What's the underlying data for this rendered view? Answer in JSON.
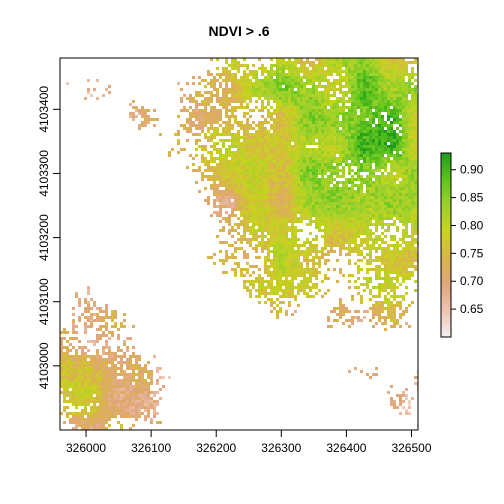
{
  "title": "NDVI > .6",
  "chart_data": {
    "type": "heatmap",
    "title": "NDVI > .6",
    "xlabel": "",
    "ylabel": "",
    "x_ticks": [
      326000,
      326100,
      326200,
      326300,
      326400,
      326500
    ],
    "x_tick_labels": [
      "326000",
      "326100",
      "326200",
      "326300",
      "326400",
      "326500"
    ],
    "y_ticks": [
      4103000,
      4103100,
      4103200,
      4103300,
      4103400
    ],
    "y_tick_labels": [
      "4103000",
      "4103100",
      "4103200",
      "4103300",
      "4103400"
    ],
    "xlim": [
      325960,
      326510
    ],
    "ylim": [
      4102900,
      4103480
    ],
    "colorbar": {
      "range": [
        0.6,
        0.93
      ],
      "ticks": [
        0.65,
        0.7,
        0.75,
        0.8,
        0.85,
        0.9
      ],
      "tick_labels": [
        "0.65",
        "0.70",
        "0.75",
        "0.80",
        "0.85",
        "0.90"
      ],
      "palette": [
        "#f2f2f2",
        "#eec4b1",
        "#e1a57d",
        "#d9b44a",
        "#c8d21f",
        "#9fd12c",
        "#5ec41c",
        "#1e9a1e"
      ]
    }
  }
}
